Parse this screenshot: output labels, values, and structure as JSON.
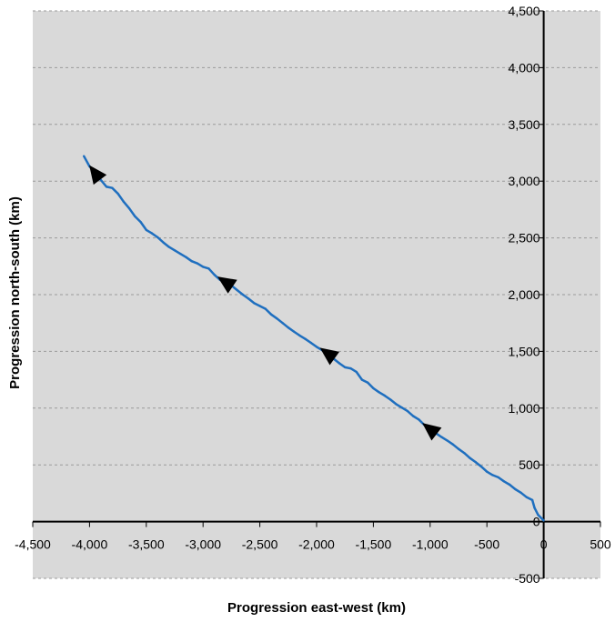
{
  "chart_data": {
    "type": "line",
    "title": "",
    "xlabel": "Progression east-west (km)",
    "ylabel": "Progression north-south (km)",
    "xlim": [
      -4500,
      500
    ],
    "ylim": [
      -500,
      4500
    ],
    "xticks": [
      -4500,
      -4000,
      -3500,
      -3000,
      -2500,
      -2000,
      -1500,
      -1000,
      -500,
      0,
      500
    ],
    "yticks": [
      0,
      500,
      1000,
      1500,
      2000,
      2500,
      3000,
      3500,
      4000,
      4500,
      -500
    ],
    "xtick_labels": [
      "-4,500",
      "-4,000",
      "-3,500",
      "-3,000",
      "-2,500",
      "-2,000",
      "-1,500",
      "-1,000",
      "-500",
      "0",
      "500"
    ],
    "ytick_labels": [
      "0",
      "500",
      "1,000",
      "1,500",
      "2,000",
      "2,500",
      "3,000",
      "3,500",
      "4,000",
      "4,500",
      "-500"
    ],
    "grid": true,
    "colors": {
      "plot_background": "#d9d9d9",
      "gridline": "#9a9a9a",
      "series": "#1f6fbf",
      "arrow": "#000000",
      "axis": "#000000"
    },
    "series": [
      {
        "x": [
          0,
          -50,
          -80,
          -100,
          -150,
          -200,
          -250,
          -300,
          -350,
          -400,
          -450,
          -500,
          -550,
          -600,
          -650,
          -700,
          -750,
          -800,
          -850,
          -900,
          -950,
          -1000,
          -1050,
          -1100,
          -1150,
          -1200,
          -1250,
          -1300,
          -1350,
          -1400,
          -1450,
          -1500,
          -1550,
          -1600,
          -1650,
          -1700,
          -1750,
          -1800,
          -1850,
          -1900,
          -1950,
          -2000,
          -2050,
          -2100,
          -2150,
          -2200,
          -2250,
          -2300,
          -2350,
          -2400,
          -2450,
          -2500,
          -2550,
          -2600,
          -2650,
          -2700,
          -2750,
          -2800,
          -2850,
          -2900,
          -2950,
          -3000,
          -3050,
          -3100,
          -3150,
          -3200,
          -3250,
          -3300,
          -3350,
          -3400,
          -3450,
          -3500,
          -3550,
          -3600,
          -3650,
          -3700,
          -3750,
          -3800,
          -3850,
          -3900,
          -3950,
          -4000,
          -4050
        ],
        "y": [
          10,
          60,
          120,
          190,
          215,
          255,
          285,
          325,
          355,
          390,
          410,
          440,
          485,
          525,
          560,
          605,
          640,
          680,
          715,
          745,
          780,
          815,
          850,
          900,
          930,
          975,
          1005,
          1035,
          1075,
          1110,
          1140,
          1175,
          1225,
          1250,
          1320,
          1350,
          1360,
          1395,
          1435,
          1480,
          1510,
          1540,
          1575,
          1610,
          1640,
          1675,
          1710,
          1750,
          1790,
          1825,
          1875,
          1900,
          1925,
          1965,
          2000,
          2040,
          2080,
          2110,
          2130,
          2175,
          2230,
          2245,
          2275,
          2295,
          2330,
          2360,
          2390,
          2420,
          2460,
          2505,
          2540,
          2570,
          2640,
          2690,
          2760,
          2820,
          2890,
          2940,
          2950,
          3010,
          3070,
          3130,
          3220
        ]
      }
    ],
    "direction_arrows_at_x": [
      -1000,
      -1900,
      -2800,
      -3950
    ]
  }
}
